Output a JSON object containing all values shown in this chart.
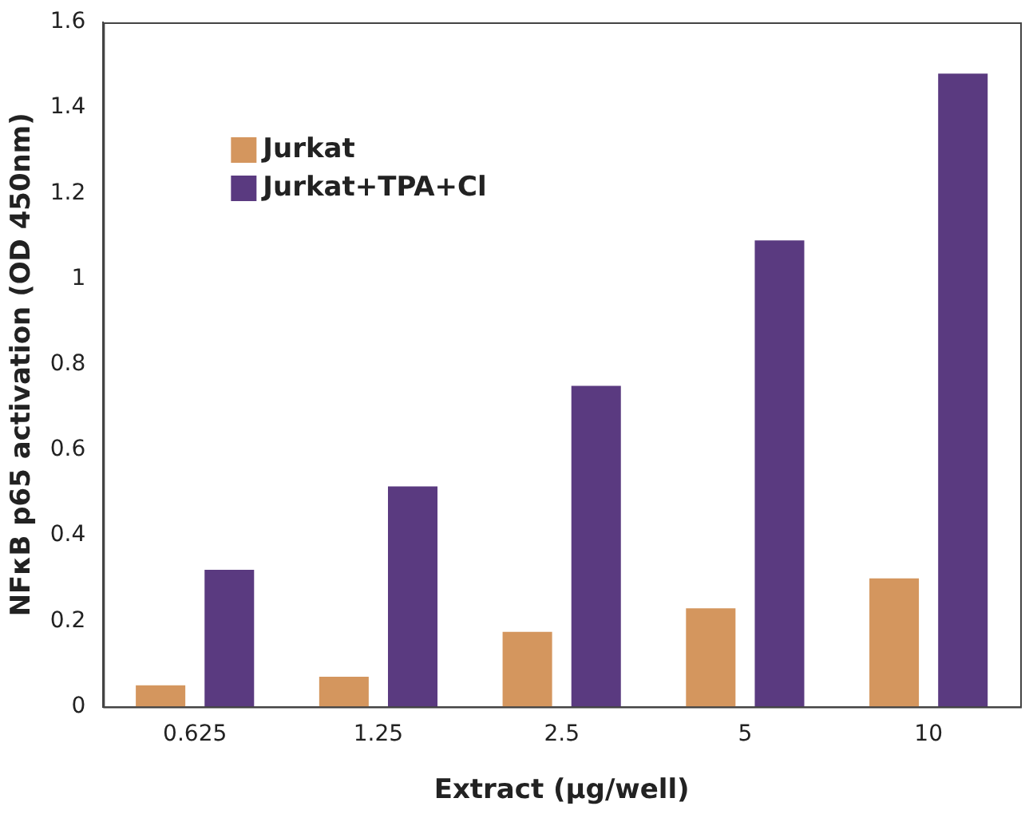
{
  "chart_data": {
    "type": "bar",
    "xlabel": "Extract (µg/well)",
    "ylabel": "NFκB p65 activation (OD 450nm)",
    "categories": [
      "0.625",
      "1.25",
      "2.5",
      "5",
      "10"
    ],
    "series": [
      {
        "name": "Jurkat",
        "color": "#d4965e",
        "values": [
          0.05,
          0.07,
          0.175,
          0.23,
          0.3
        ]
      },
      {
        "name": "Jurkat+TPA+Cl",
        "color": "#5a3a80",
        "values": [
          0.32,
          0.515,
          0.75,
          1.09,
          1.48
        ]
      }
    ],
    "ylim": [
      0,
      1.6
    ],
    "yticks": [
      0,
      0.2,
      0.4,
      0.6,
      0.8,
      1,
      1.2,
      1.4,
      1.6
    ],
    "grid": false,
    "legend": "top left"
  }
}
